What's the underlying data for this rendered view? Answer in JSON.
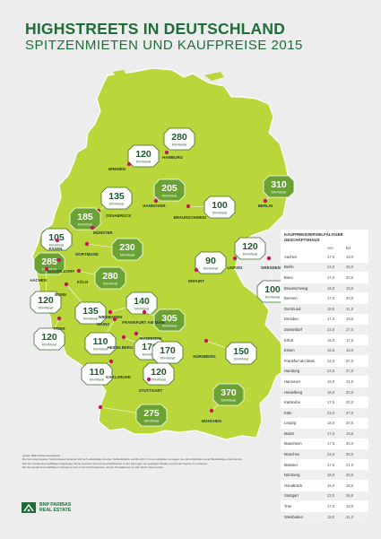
{
  "title": {
    "line1": "HIGHSTREETS IN DEUTSCHLAND",
    "line2": "SPITZENMIETEN UND KAUFPREISE 2015"
  },
  "unit": "€/m²/Monat",
  "colors": {
    "map": "#b9d63a",
    "dark_green": "#1f6e3a",
    "badge_white": "#ffffff",
    "badge_green": "#6aa234",
    "dot": "#c2185b"
  },
  "cities": [
    {
      "name": "HAMBURG",
      "value": "280",
      "style": "white"
    },
    {
      "name": "BREMEN",
      "value": "120",
      "style": "white"
    },
    {
      "name": "HANNOVER",
      "value": "205",
      "style": "green"
    },
    {
      "name": "BRAUNSCHWEIG",
      "value": "100",
      "style": "white"
    },
    {
      "name": "BERLIN",
      "value": "310",
      "style": "green"
    },
    {
      "name": "OSNABRÜCK",
      "value": "135",
      "style": "white"
    },
    {
      "name": "MÜNSTER",
      "value": "185",
      "style": "green"
    },
    {
      "name": "ESSEN",
      "value": "105",
      "style": "white"
    },
    {
      "name": "DORTMUND",
      "value": "230",
      "style": "green"
    },
    {
      "name": "DÜSSELDORF",
      "value": "285",
      "style": "green"
    },
    {
      "name": "KÖLN",
      "value": "280",
      "style": "green"
    },
    {
      "name": "AACHEN",
      "value": "120",
      "style": "white"
    },
    {
      "name": "BONN",
      "value": "135",
      "style": "white"
    },
    {
      "name": "LEIPZIG",
      "value": "120",
      "style": "white"
    },
    {
      "name": "DRESDEN",
      "value": "100",
      "style": "white"
    },
    {
      "name": "ERFURT",
      "value": "90",
      "style": "white"
    },
    {
      "name": "TRIER",
      "value": "120",
      "style": "white"
    },
    {
      "name": "WIESBADEN",
      "value": "140",
      "style": "white"
    },
    {
      "name": "FRANKFURT AM MAIN",
      "value": "305",
      "style": "green"
    },
    {
      "name": "MAINZ",
      "value": "110",
      "style": "white"
    },
    {
      "name": "HEIDELBERG",
      "value": "170",
      "style": "white"
    },
    {
      "name": "MANNHEIM",
      "value": "170",
      "style": "white"
    },
    {
      "name": "NÜRNBERG",
      "value": "150",
      "style": "white"
    },
    {
      "name": "KARLSRUHE",
      "value": "110",
      "style": "white"
    },
    {
      "name": "STUTTGART",
      "value": "120",
      "style": "white"
    },
    {
      "name": "MÜNCHEN",
      "value": "370",
      "style": "green"
    },
    {
      "name": "FREIBURG",
      "value": "275",
      "style": "green"
    }
  ],
  "table": {
    "title": "KAUFPREISVERVIELFÄLTIGER GESCHÄFTSHAUS",
    "col_from": "von",
    "col_to": "bis",
    "rows": [
      {
        "city": "Aachen",
        "von": "17,0",
        "bis": "19,0"
      },
      {
        "city": "Berlin",
        "von": "23,0",
        "bis": "28,0"
      },
      {
        "city": "Bonn",
        "von": "17,5",
        "bis": "20,0"
      },
      {
        "city": "Braunschweig",
        "von": "16,0",
        "bis": "18,5"
      },
      {
        "city": "Bremen",
        "von": "17,0",
        "bis": "20,0"
      },
      {
        "city": "Dortmund",
        "von": "18,5",
        "bis": "21,5"
      },
      {
        "city": "Dresden",
        "von": "17,0",
        "bis": "19,5"
      },
      {
        "city": "Düsseldorf",
        "von": "22,0",
        "bis": "27,0"
      },
      {
        "city": "Erfurt",
        "von": "15,0",
        "bis": "17,0"
      },
      {
        "city": "Essen",
        "von": "16,5",
        "bis": "19,0"
      },
      {
        "city": "Frankfurt am Main",
        "von": "22,0",
        "bis": "27,0"
      },
      {
        "city": "Hamburg",
        "von": "22,5",
        "bis": "27,5"
      },
      {
        "city": "Hannover",
        "von": "19,0",
        "bis": "21,0"
      },
      {
        "city": "Heidelberg",
        "von": "18,0",
        "bis": "20,0"
      },
      {
        "city": "Karlsruhe",
        "von": "17,5",
        "bis": "20,0"
      },
      {
        "city": "Köln",
        "von": "22,0",
        "bis": "27,0"
      },
      {
        "city": "Leipzig",
        "von": "18,0",
        "bis": "20,5"
      },
      {
        "city": "Mainz",
        "von": "17,0",
        "bis": "19,5"
      },
      {
        "city": "Mannheim",
        "von": "17,5",
        "bis": "20,0"
      },
      {
        "city": "München",
        "von": "24,0",
        "bis": "30,0"
      },
      {
        "city": "Münster",
        "von": "17,5",
        "bis": "21,0"
      },
      {
        "city": "Nürnberg",
        "von": "18,0",
        "bis": "20,5"
      },
      {
        "city": "Osnabrück",
        "von": "16,0",
        "bis": "18,0"
      },
      {
        "city": "Stuttgart",
        "von": "22,0",
        "bis": "26,5"
      },
      {
        "city": "Trier",
        "von": "17,0",
        "bis": "19,0"
      },
      {
        "city": "Wiesbaden",
        "von": "18,0",
        "bis": "21,0"
      }
    ]
  },
  "source": {
    "line1": "Quelle: BNP Paribas Real Estate",
    "line2": "Die hier eingetragenen Spitzenmieten beziehen sich auf Ladenlokale mit einer Verkaufsfläche von 80–120 m² in den absoluten 1a-Lagen, die beim Abschluss neuer Mietverträge erzielt werden.",
    "line3": "Die dem Kaufpreisvervielfältiger beigefügten Werte beziehen sich auf Geschäftshäuser in den Top-Lagen der jeweiligen Städte und sind als Spanne zu verstehen.",
    "line4": "Bei den Kaufpreisvervielfältigern handelt es sich um Durchschnittswerte, die bei Transaktionen im Jahr 2015 erzielt wurden."
  },
  "logo": {
    "line1": "BNP PARIBAS",
    "line2": "REAL ESTATE"
  }
}
